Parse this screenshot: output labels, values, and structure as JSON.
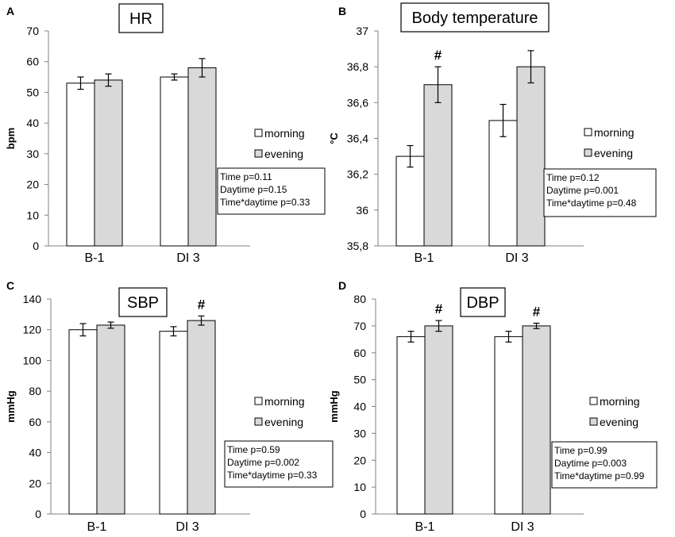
{
  "figure": {
    "legend_labels": [
      "morning",
      "evening"
    ],
    "colors": {
      "morning": "#ffffff",
      "evening": "#d9d9d9",
      "stroke": "#000000",
      "axis": "#808080"
    }
  },
  "chart_data": [
    {
      "panel": "A",
      "type": "bar",
      "title": "HR",
      "ylabel": "bpm",
      "ylim": [
        0,
        70
      ],
      "yticks": [
        "0",
        "10",
        "20",
        "30",
        "40",
        "50",
        "60",
        "70"
      ],
      "categories": [
        "B-1",
        "DI 3"
      ],
      "series": [
        {
          "name": "morning",
          "values": [
            53,
            55
          ],
          "errors": [
            2,
            1
          ]
        },
        {
          "name": "evening",
          "values": [
            54,
            58
          ],
          "errors": [
            2,
            3
          ]
        }
      ],
      "significance": [
        null,
        null
      ],
      "stats": [
        "Time p=0.11",
        "Daytime p=0.15",
        "Time*daytime p=0.33"
      ]
    },
    {
      "panel": "B",
      "type": "bar",
      "title": "Body temperature",
      "ylabel": "°C",
      "ylim": [
        35.8,
        37
      ],
      "yticks": [
        "35,8",
        "36",
        "36,2",
        "36,4",
        "36,6",
        "36,8",
        "37"
      ],
      "categories": [
        "B-1",
        "DI 3"
      ],
      "series": [
        {
          "name": "morning",
          "values": [
            36.3,
            36.5
          ],
          "errors": [
            0.06,
            0.09
          ]
        },
        {
          "name": "evening",
          "values": [
            36.7,
            36.8
          ],
          "errors": [
            0.1,
            0.09
          ]
        }
      ],
      "significance": [
        "#",
        null
      ],
      "stats": [
        "Time p=0.12",
        "Daytime p=0.001",
        "Time*daytime p=0.48"
      ]
    },
    {
      "panel": "C",
      "type": "bar",
      "title": "SBP",
      "ylabel": "mmHg",
      "ylim": [
        0,
        140
      ],
      "yticks": [
        "0",
        "20",
        "40",
        "60",
        "80",
        "100",
        "120",
        "140"
      ],
      "categories": [
        "B-1",
        "DI 3"
      ],
      "series": [
        {
          "name": "morning",
          "values": [
            120,
            119
          ],
          "errors": [
            4,
            3
          ]
        },
        {
          "name": "evening",
          "values": [
            123,
            126
          ],
          "errors": [
            2,
            3
          ]
        }
      ],
      "significance": [
        null,
        "#"
      ],
      "stats": [
        "Time p=0.59",
        "Daytime p=0.002",
        "Time*daytime p=0.33"
      ]
    },
    {
      "panel": "D",
      "type": "bar",
      "title": "DBP",
      "ylabel": "mmHg",
      "ylim": [
        0,
        80
      ],
      "yticks": [
        "0",
        "10",
        "20",
        "30",
        "40",
        "50",
        "60",
        "70",
        "80"
      ],
      "categories": [
        "B-1",
        "DI 3"
      ],
      "series": [
        {
          "name": "morning",
          "values": [
            66,
            66
          ],
          "errors": [
            2,
            2
          ]
        },
        {
          "name": "evening",
          "values": [
            70,
            70
          ],
          "errors": [
            2,
            1
          ]
        }
      ],
      "significance": [
        "#",
        "#"
      ],
      "stats": [
        "Time p=0.99",
        "Daytime p=0.003",
        "Time*daytime p=0.99"
      ]
    }
  ]
}
